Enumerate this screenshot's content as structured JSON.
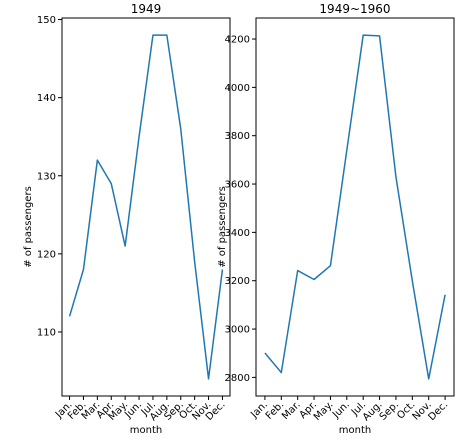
{
  "chart_data": [
    {
      "type": "line",
      "title": "1949",
      "xlabel": "month",
      "ylabel": "# of passengers",
      "categories": [
        "Jan.",
        "Feb.",
        "Mar.",
        "Apr.",
        "May.",
        "Jun.",
        "Jul.",
        "Aug.",
        "Sep.",
        "Oct.",
        "Nov.",
        "Dec."
      ],
      "values": [
        112,
        118,
        132,
        129,
        121,
        135,
        148,
        148,
        136,
        119,
        104,
        118
      ],
      "ylim": [
        101.8,
        150.2
      ],
      "yticks": [
        110,
        120,
        130,
        140,
        150
      ],
      "yticklabels": [
        "110",
        "120",
        "130",
        "140",
        "150"
      ],
      "grid": false,
      "line_color": "#1f77b4"
    },
    {
      "type": "line",
      "title": "1949~1960",
      "xlabel": "month",
      "ylabel": "# of passengers",
      "categories": [
        "Jan.",
        "Feb.",
        "Mar.",
        "Apr.",
        "May.",
        "Jun.",
        "Jul.",
        "Aug.",
        "Sep.",
        "Oct.",
        "Nov.",
        "Dec."
      ],
      "values": [
        2901,
        2820,
        3242,
        3205,
        3262,
        3740,
        4216,
        4213,
        3629,
        3199,
        2794,
        3142
      ],
      "ylim": [
        2723,
        4287
      ],
      "yticks": [
        2800,
        3000,
        3200,
        3400,
        3600,
        3800,
        4000,
        4200
      ],
      "yticklabels": [
        "2800",
        "3000",
        "3200",
        "3400",
        "3600",
        "3800",
        "4000",
        "4200"
      ],
      "grid": false,
      "line_color": "#1f77b4"
    }
  ]
}
